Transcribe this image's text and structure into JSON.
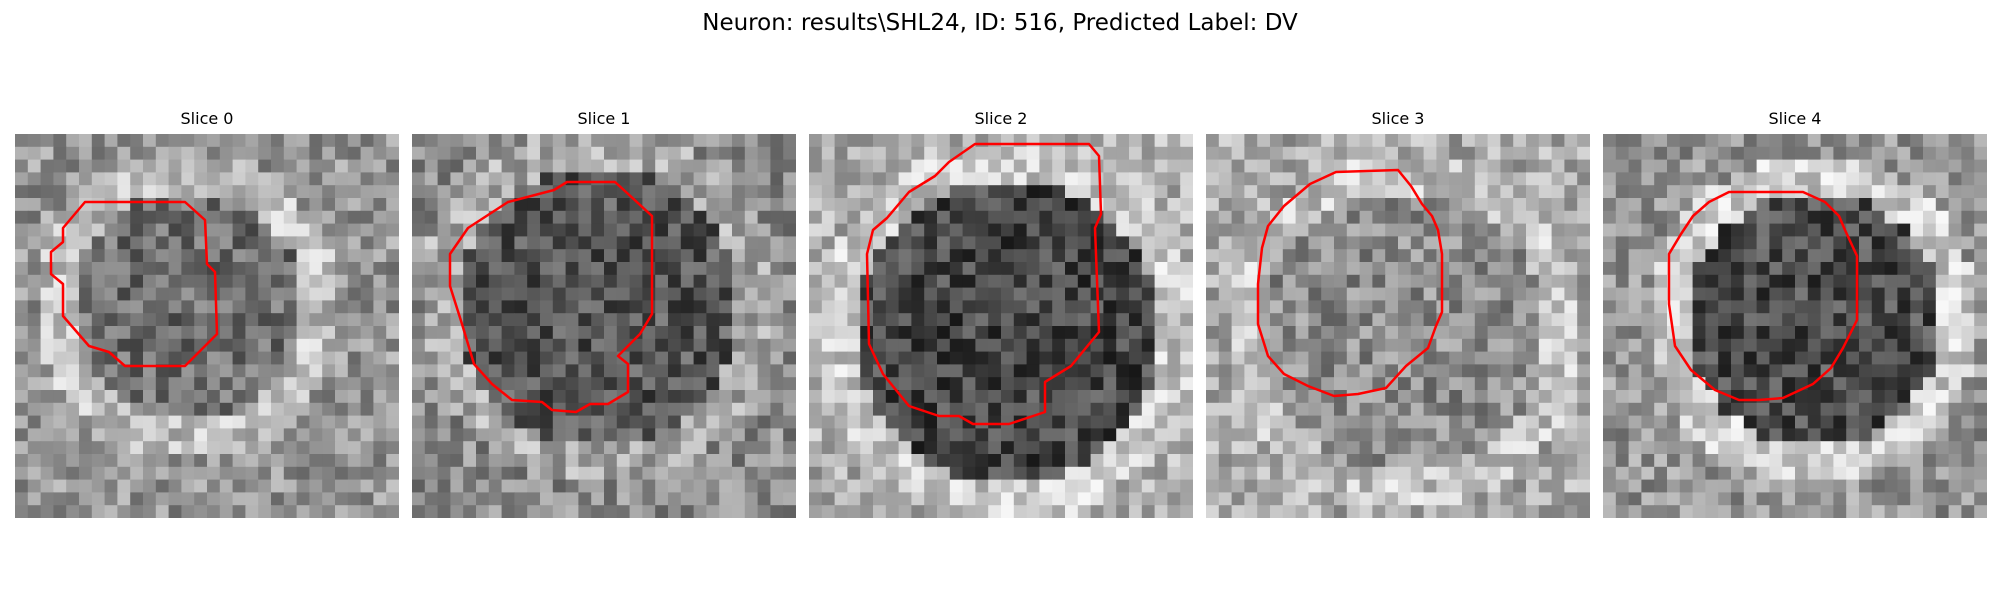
{
  "figure": {
    "title": "Neuron: results\\SHL24, ID: 516, Predicted Label: DV"
  },
  "colors": {
    "contour": "#ff0000",
    "background": "#ffffff"
  },
  "panels": [
    {
      "title": "Slice 0"
    },
    {
      "title": "Slice 1"
    },
    {
      "title": "Slice 2"
    },
    {
      "title": "Slice 3"
    },
    {
      "title": "Slice 4"
    }
  ]
}
